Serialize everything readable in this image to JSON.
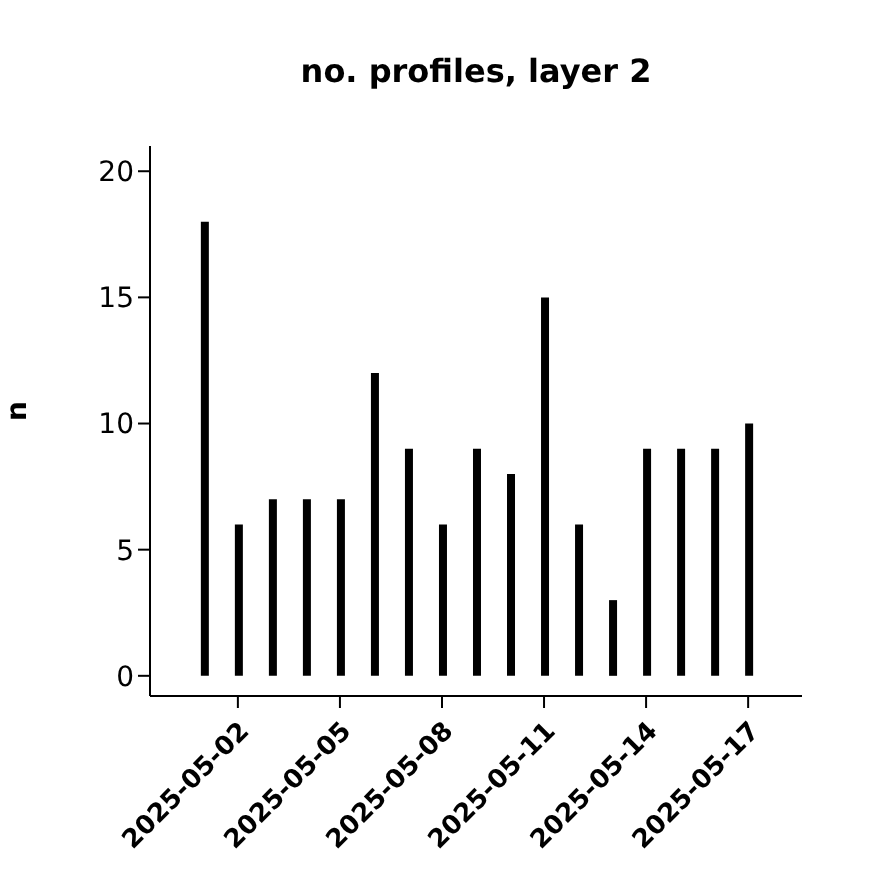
{
  "chart_data": {
    "type": "bar",
    "title": "no. profiles, layer 2",
    "ylabel": "n",
    "x": [
      "2025-05-01",
      "2025-05-02",
      "2025-05-03",
      "2025-05-04",
      "2025-05-05",
      "2025-05-06",
      "2025-05-07",
      "2025-05-08",
      "2025-05-09",
      "2025-05-10",
      "2025-05-11",
      "2025-05-12",
      "2025-05-13",
      "2025-05-14",
      "2025-05-15",
      "2025-05-16",
      "2025-05-17"
    ],
    "values": [
      18,
      6,
      7,
      7,
      7,
      12,
      9,
      6,
      9,
      8,
      15,
      6,
      3,
      9,
      9,
      9,
      10
    ],
    "color": "#000000",
    "xlim": [
      "2025-04-29T10:00",
      "2025-05-18T14:00"
    ],
    "xticks": [
      "2025-05-02",
      "2025-05-05",
      "2025-05-08",
      "2025-05-11",
      "2025-05-14",
      "2025-05-17"
    ],
    "ylim": [
      -0.8,
      21
    ],
    "yticks": [
      0,
      5,
      10,
      15,
      20
    ],
    "grid": false,
    "legend": false
  }
}
